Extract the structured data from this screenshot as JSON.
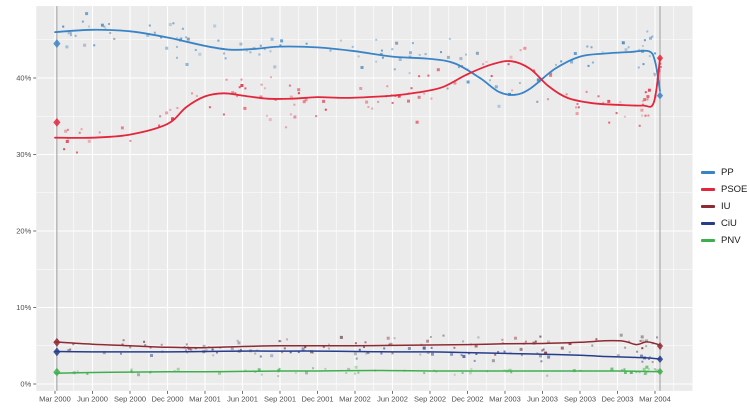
{
  "legend": {
    "items": [
      {
        "label": "PP",
        "color": "#3984c6"
      },
      {
        "label": "PSOE",
        "color": "#e4263c"
      },
      {
        "label": "IU",
        "color": "#8e2a33"
      },
      {
        "label": "CiU",
        "color": "#273d8c"
      },
      {
        "label": "PNV",
        "color": "#3faf4e"
      }
    ]
  },
  "chart_data": {
    "type": "scatter",
    "description": "Opinion polling trend lines with poll scatter points, March 2000 - March 2004 Spanish general elections",
    "x_axis": {
      "tick_months": [
        0,
        3,
        6,
        9,
        12,
        15,
        18,
        21,
        24,
        27,
        30,
        33,
        36,
        39,
        42,
        45,
        48
      ],
      "tick_labels": [
        "Mar 2000",
        "Jun 2000",
        "Sep 2000",
        "Dec 2000",
        "Mar 2001",
        "Jun 2001",
        "Sep 2001",
        "Dec 2001",
        "Mar 2002",
        "Jun 2002",
        "Sep 2002",
        "Dec 2002",
        "Mar 2003",
        "Jun 2003",
        "Sep 2003",
        "Dec 2003",
        "Mar 2004"
      ],
      "range_months": [
        -1.5,
        51
      ],
      "minor_grid_months": [
        1.5,
        4.5,
        7.5,
        10.5,
        13.5,
        16.5,
        19.5,
        22.5,
        25.5,
        28.5,
        31.5,
        34.5,
        37.5,
        40.5,
        43.5,
        46.5,
        49.5
      ]
    },
    "y_axis": {
      "tick_values": [
        0,
        10,
        20,
        30,
        40
      ],
      "tick_labels": [
        "0%",
        "10%",
        "20%",
        "30%",
        "40%"
      ],
      "range": [
        -0.9,
        49.4
      ],
      "minor_grid_values": [
        5,
        15,
        25,
        35,
        45
      ]
    },
    "grid": {
      "panel_bg": "#ebebeb",
      "grid_color": "#ffffff",
      "election_line_color": "#9e9e9e",
      "tick_color": "#333333",
      "label_color": "#4d4d4d"
    },
    "series": [
      {
        "name": "PP",
        "color": "#3984c6",
        "line_width": 1.8,
        "point_colors": [
          "#3984c6",
          "#6ea6d8",
          "#8099ad",
          "#4c8fc9"
        ],
        "trend": [
          [
            0,
            46.0
          ],
          [
            3,
            46.3
          ],
          [
            6,
            46.1
          ],
          [
            9,
            45.3
          ],
          [
            12,
            44.2
          ],
          [
            14,
            43.7
          ],
          [
            16,
            43.8
          ],
          [
            18,
            44.1
          ],
          [
            21,
            44.0
          ],
          [
            24,
            43.5
          ],
          [
            27,
            42.8
          ],
          [
            30,
            42.5
          ],
          [
            32,
            41.9
          ],
          [
            34,
            40.0
          ],
          [
            35.5,
            38.2
          ],
          [
            36.8,
            37.8
          ],
          [
            38,
            38.6
          ],
          [
            40,
            41.2
          ],
          [
            42,
            42.8
          ],
          [
            44,
            43.2
          ],
          [
            46,
            43.4
          ],
          [
            47.5,
            43.5
          ],
          [
            48,
            42.2
          ],
          [
            48.4,
            38.3
          ]
        ],
        "scatter": {
          "count": 105,
          "sigma": 1.35,
          "end_cluster": 12
        }
      },
      {
        "name": "PSOE",
        "color": "#e4263c",
        "line_width": 1.8,
        "point_colors": [
          "#e4263c",
          "#f0808e",
          "#e86a74",
          "#d9475a"
        ],
        "trend": [
          [
            0,
            32.2
          ],
          [
            3,
            32.2
          ],
          [
            6,
            32.6
          ],
          [
            9,
            34.0
          ],
          [
            10.5,
            36.2
          ],
          [
            12,
            37.6
          ],
          [
            13.5,
            38.0
          ],
          [
            15,
            37.7
          ],
          [
            17,
            37.3
          ],
          [
            19,
            37.3
          ],
          [
            21,
            37.5
          ],
          [
            23,
            37.4
          ],
          [
            25,
            37.5
          ],
          [
            27,
            37.7
          ],
          [
            29,
            38.1
          ],
          [
            31,
            38.8
          ],
          [
            33,
            40.5
          ],
          [
            35,
            41.8
          ],
          [
            36.5,
            42.2
          ],
          [
            38,
            41.2
          ],
          [
            39.5,
            38.9
          ],
          [
            41,
            37.4
          ],
          [
            43,
            36.7
          ],
          [
            45,
            36.5
          ],
          [
            47,
            36.4
          ],
          [
            47.9,
            36.8
          ],
          [
            48.4,
            42.5
          ]
        ],
        "scatter": {
          "count": 110,
          "sigma": 1.45,
          "end_cluster": 12
        }
      },
      {
        "name": "IU",
        "color": "#8e2a33",
        "line_width": 1.5,
        "point_colors": [
          "#8e2a33",
          "#a05560",
          "#8a8a8a",
          "#77555a"
        ],
        "trend": [
          [
            0,
            5.5
          ],
          [
            3,
            5.2
          ],
          [
            6,
            5.0
          ],
          [
            9,
            4.8
          ],
          [
            12,
            4.75
          ],
          [
            15,
            4.9
          ],
          [
            18,
            5.0
          ],
          [
            21,
            5.0
          ],
          [
            24,
            5.0
          ],
          [
            27,
            5.05
          ],
          [
            30,
            5.1
          ],
          [
            33,
            5.15
          ],
          [
            36,
            5.25
          ],
          [
            39,
            5.3
          ],
          [
            42,
            5.45
          ],
          [
            44,
            5.65
          ],
          [
            45.5,
            5.6
          ],
          [
            46.5,
            5.15
          ],
          [
            47.3,
            5.5
          ],
          [
            48,
            5.3
          ],
          [
            48.4,
            5.05
          ]
        ],
        "scatter": {
          "count": 72,
          "sigma": 0.6,
          "end_cluster": 8
        }
      },
      {
        "name": "CiU",
        "color": "#273d8c",
        "line_width": 1.5,
        "point_colors": [
          "#273d8c",
          "#5a6aa0",
          "#888888",
          "#6a739a"
        ],
        "trend": [
          [
            0,
            4.25
          ],
          [
            3,
            4.2
          ],
          [
            6,
            4.2
          ],
          [
            9,
            4.2
          ],
          [
            12,
            4.25
          ],
          [
            15,
            4.3
          ],
          [
            18,
            4.3
          ],
          [
            21,
            4.3
          ],
          [
            24,
            4.25
          ],
          [
            27,
            4.2
          ],
          [
            30,
            4.2
          ],
          [
            33,
            4.1
          ],
          [
            36,
            4.0
          ],
          [
            39,
            3.9
          ],
          [
            42,
            3.75
          ],
          [
            44,
            3.6
          ],
          [
            46,
            3.5
          ],
          [
            47.5,
            3.4
          ],
          [
            48.4,
            3.25
          ]
        ],
        "scatter": {
          "count": 55,
          "sigma": 0.5,
          "end_cluster": 8
        }
      },
      {
        "name": "PNV",
        "color": "#3faf4e",
        "line_width": 1.5,
        "point_colors": [
          "#3faf4e",
          "#77c578",
          "#96ab97",
          "#57b862"
        ],
        "trend": [
          [
            0,
            1.4
          ],
          [
            3,
            1.5
          ],
          [
            6,
            1.55
          ],
          [
            9,
            1.6
          ],
          [
            12,
            1.6
          ],
          [
            15,
            1.65
          ],
          [
            18,
            1.7
          ],
          [
            21,
            1.7
          ],
          [
            24,
            1.75
          ],
          [
            27,
            1.75
          ],
          [
            30,
            1.7
          ],
          [
            33,
            1.7
          ],
          [
            36,
            1.7
          ],
          [
            39,
            1.7
          ],
          [
            42,
            1.7
          ],
          [
            45,
            1.7
          ],
          [
            47,
            1.65
          ],
          [
            48.4,
            1.6
          ]
        ],
        "scatter": {
          "count": 55,
          "sigma": 0.28,
          "end_cluster": 8
        }
      }
    ],
    "elections": [
      {
        "label": "Mar 2000",
        "month": 0.15,
        "results": {
          "PP": 44.5,
          "PSOE": 34.2,
          "IU": 5.45,
          "CiU": 4.2,
          "PNV": 1.55
        }
      },
      {
        "label": "Mar 2004",
        "month": 48.4,
        "results": {
          "PP": 37.7,
          "PSOE": 42.6,
          "IU": 4.96,
          "CiU": 3.24,
          "PNV": 1.63
        }
      }
    ]
  }
}
